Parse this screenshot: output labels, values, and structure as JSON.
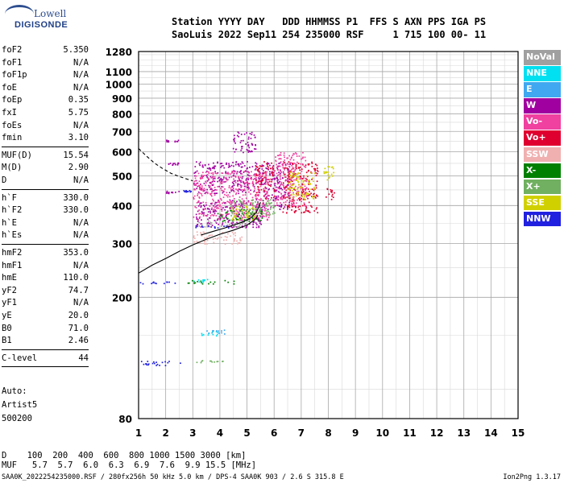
{
  "logo": {
    "line1": "Lowell",
    "line2": "DIGISONDE"
  },
  "header": {
    "line1": "Station YYYY DAY   DDD HHMMSS P1  FFS S AXN PPS IGA PS",
    "line2": "SaoLuis 2022 Sep11 254 235000 RSF     1 715 100 00- 11"
  },
  "params_group1": [
    {
      "label": "foF2",
      "value": "5.350"
    },
    {
      "label": "foF1",
      "value": "N/A"
    },
    {
      "label": "foF1p",
      "value": "N/A"
    },
    {
      "label": "foE",
      "value": "N/A"
    },
    {
      "label": "foEp",
      "value": "0.35"
    },
    {
      "label": "fxI",
      "value": "5.75"
    },
    {
      "label": "foEs",
      "value": "N/A"
    },
    {
      "label": "fmin",
      "value": "3.10"
    }
  ],
  "params_group2": [
    {
      "label": "MUF(D)",
      "value": "15.54"
    },
    {
      "label": "M(D)",
      "value": "2.90"
    },
    {
      "label": "D",
      "value": "N/A"
    }
  ],
  "params_group3": [
    {
      "label": "h`F",
      "value": "330.0"
    },
    {
      "label": "h`F2",
      "value": "330.0"
    },
    {
      "label": "h`E",
      "value": "N/A"
    },
    {
      "label": "h`Es",
      "value": "N/A"
    }
  ],
  "params_group4": [
    {
      "label": "hmF2",
      "value": "353.0"
    },
    {
      "label": "hmF1",
      "value": "N/A"
    },
    {
      "label": "hmE",
      "value": "110.0"
    },
    {
      "label": "yF2",
      "value": "74.7"
    },
    {
      "label": "yF1",
      "value": "N/A"
    },
    {
      "label": "yE",
      "value": "20.0"
    },
    {
      "label": "B0",
      "value": "71.0"
    },
    {
      "label": "B1",
      "value": "2.46"
    }
  ],
  "params_group5": [
    {
      "label": "C-level",
      "value": "44"
    }
  ],
  "auto": {
    "line1": "Auto:",
    "line2": "Artist5",
    "line3": "500200"
  },
  "legend": [
    {
      "label": "NoVal",
      "color": "#a0a0a0"
    },
    {
      "label": "NNE",
      "color": "#00e0f0"
    },
    {
      "label": "E",
      "color": "#40a8f0"
    },
    {
      "label": "W",
      "color": "#a000a0"
    },
    {
      "label": "Vo-",
      "color": "#f040a0"
    },
    {
      "label": "Vo+",
      "color": "#e00030"
    },
    {
      "label": "SSW",
      "color": "#f0b0b0"
    },
    {
      "label": "X-",
      "color": "#008000"
    },
    {
      "label": "X+",
      "color": "#70b060"
    },
    {
      "label": "SSE",
      "color": "#d0d000"
    },
    {
      "label": "NNW",
      "color": "#2020e0"
    }
  ],
  "bottom": {
    "d_line": "D    100  200  400  600  800 1000 1500 3000 [km]",
    "muf_line": "MUF   5.7  5.7  6.0  6.3  6.9  7.6  9.9 15.5 [MHz]"
  },
  "footer": {
    "left": "SAA0K_2022254235000.RSF / 280fx256h 50 kHz 5.0 km / DPS-4 SAA0K 903 / 2.6 S 315.8 E",
    "right": "Ion2Png 1.3.17"
  },
  "chart_data": {
    "type": "scatter",
    "title": "",
    "xlabel": "",
    "ylabel": "",
    "xlim": [
      1,
      15
    ],
    "ylim": [
      80,
      1280
    ],
    "x_ticks": [
      1,
      2,
      3,
      4,
      5,
      6,
      7,
      8,
      9,
      10,
      11,
      12,
      13,
      14,
      15
    ],
    "y_ticks": [
      80,
      200,
      300,
      400,
      500,
      600,
      700,
      800,
      900,
      1000,
      1100,
      1280
    ],
    "y_scale": "log",
    "grid": true,
    "series": [
      {
        "name": "W",
        "color": "#a000a0",
        "clusters": [
          {
            "x": [
              3.0,
              5.5
            ],
            "y": [
              440,
              560
            ]
          },
          {
            "x": [
              3.1,
              5.6
            ],
            "y": [
              340,
              420
            ]
          },
          {
            "x": [
              5.5,
              6.6
            ],
            "y": [
              390,
              560
            ]
          },
          {
            "x": [
              2.0,
              2.5
            ],
            "y": [
              545,
              555
            ]
          },
          {
            "x": [
              2.0,
              2.5
            ],
            "y": [
              650,
              660
            ]
          },
          {
            "x": [
              2.0,
              2.5
            ],
            "y": [
              440,
              448
            ]
          },
          {
            "x": [
              4.4,
              5.3
            ],
            "y": [
              600,
              700
            ]
          }
        ]
      },
      {
        "name": "Vo+",
        "color": "#e00030",
        "clusters": [
          {
            "x": [
              7.8,
              8.2
            ],
            "y": [
              420,
              460
            ]
          },
          {
            "x": [
              6.3,
              7.6
            ],
            "y": [
              380,
              560
            ]
          },
          {
            "x": [
              5.3,
              6.0
            ],
            "y": [
              420,
              560
            ]
          }
        ]
      },
      {
        "name": "Vo-",
        "color": "#f040a0",
        "clusters": [
          {
            "x": [
              3.0,
              5.8
            ],
            "y": [
              360,
              520
            ]
          },
          {
            "x": [
              6.0,
              7.2
            ],
            "y": [
              400,
              600
            ]
          }
        ]
      },
      {
        "name": "NNW",
        "color": "#2020e0",
        "clusters": [
          {
            "x": [
              1.0,
              2.6
            ],
            "y": [
              120,
              124
            ]
          },
          {
            "x": [
              1.0,
              2.4
            ],
            "y": [
              222,
              226
            ]
          },
          {
            "x": [
              3.0,
              4.3
            ],
            "y": [
              338,
              345
            ]
          },
          {
            "x": [
              2.6,
              3.0
            ],
            "y": [
              445,
              450
            ]
          }
        ]
      },
      {
        "name": "X-",
        "color": "#008000",
        "clusters": [
          {
            "x": [
              3.9,
              5.6
            ],
            "y": [
              355,
              390
            ]
          },
          {
            "x": [
              2.8,
              4.5
            ],
            "y": [
              222,
              228
            ]
          }
        ]
      },
      {
        "name": "X+",
        "color": "#70b060",
        "clusters": [
          {
            "x": [
              4.3,
              6.0
            ],
            "y": [
              370,
              420
            ]
          },
          {
            "x": [
              3.1,
              4.2
            ],
            "y": [
              122,
              125
            ]
          }
        ]
      },
      {
        "name": "SSE",
        "color": "#d0d000",
        "clusters": [
          {
            "x": [
              7.8,
              8.2
            ],
            "y": [
              480,
              540
            ]
          },
          {
            "x": [
              6.5,
              7.5
            ],
            "y": [
              420,
              520
            ]
          },
          {
            "x": [
              4.4,
              5.3
            ],
            "y": [
              360,
              400
            ]
          }
        ]
      },
      {
        "name": "NNE",
        "color": "#00e0f0",
        "clusters": [
          {
            "x": [
              3.3,
              3.9
            ],
            "y": [
              150,
              156
            ]
          },
          {
            "x": [
              3.0,
              3.6
            ],
            "y": [
              225,
              230
            ]
          }
        ]
      },
      {
        "name": "E",
        "color": "#40a8f0",
        "clusters": [
          {
            "x": [
              3.5,
              4.2
            ],
            "y": [
              152,
              158
            ]
          }
        ]
      },
      {
        "name": "SSW",
        "color": "#f0b0b0",
        "clusters": [
          {
            "x": [
              3.0,
              4.8
            ],
            "y": [
              300,
              330
            ]
          }
        ]
      },
      {
        "name": "NoVal",
        "color": "#a0a0a0",
        "clusters": [
          {
            "x": [
              3.2,
              5.0
            ],
            "y": [
              340,
              360
            ]
          }
        ]
      }
    ],
    "profile_curve": {
      "x": [
        1.0,
        1.5,
        2.0,
        2.5,
        3.0,
        3.5,
        4.0,
        4.5,
        5.0,
        5.3,
        5.4
      ],
      "y": [
        240,
        255,
        268,
        283,
        297,
        310,
        322,
        332,
        345,
        360,
        372
      ]
    },
    "trace_curve": {
      "x": [
        3.3,
        3.6,
        3.9,
        4.2,
        4.5,
        4.8,
        5.1,
        5.35,
        5.5
      ],
      "y": [
        320,
        326,
        332,
        338,
        345,
        352,
        362,
        380,
        410
      ]
    },
    "dashed_curve": {
      "x": [
        1.0,
        1.3,
        1.6,
        1.9,
        2.2,
        2.5,
        2.8,
        3.0
      ],
      "y": [
        615,
        580,
        550,
        528,
        510,
        498,
        488,
        482
      ]
    }
  }
}
